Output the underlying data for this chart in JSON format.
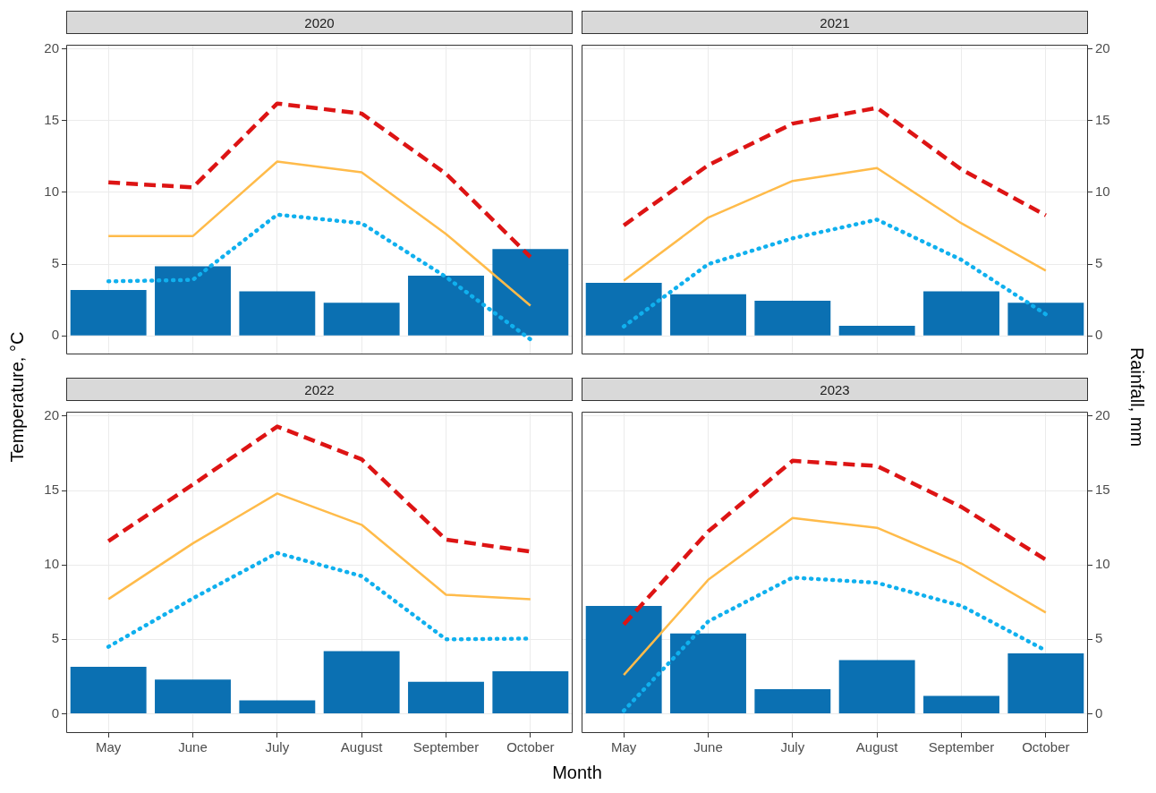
{
  "chart_data": [
    {
      "type": "bar",
      "title": "2020",
      "ylabel": "Temperature, °C",
      "categories": [
        null,
        null,
        null,
        null,
        null,
        null
      ],
      "ylim": [
        -1.3,
        20.3
      ],
      "yticks": [
        0,
        5,
        10,
        15,
        20
      ],
      "grid": true,
      "legend": false,
      "tick_labels": "y",
      "marker": "none",
      "series": [
        {
          "color": "#0b70b2",
          "values": [
            3.2,
            4.85,
            3.1,
            2.3,
            4.2,
            6.05
          ]
        },
        {
          "type": "line",
          "line_style": "dashed",
          "color": "#dd1414",
          "values": [
            10.7,
            10.35,
            16.2,
            15.5,
            11.3,
            5.5
          ]
        },
        {
          "type": "line",
          "line_style": "solid",
          "color": "#ffbb4a",
          "values": [
            6.95,
            6.95,
            12.15,
            11.4,
            7.1,
            2.1
          ]
        },
        {
          "type": "line",
          "line_style": "dotted",
          "color": "#10b0ee",
          "values": [
            3.8,
            3.9,
            8.45,
            7.85,
            4.1,
            -0.25
          ]
        }
      ]
    },
    {
      "type": "bar",
      "title": "2021",
      "y2label": "Rainfall, mm",
      "categories": [
        null,
        null,
        null,
        null,
        null,
        null
      ],
      "y2lim": [
        -1.3,
        20.3
      ],
      "y2ticks": [
        0,
        5,
        10,
        15,
        20
      ],
      "grid": true,
      "legend": false,
      "tick_labels": "y",
      "marker": "none",
      "series": [
        {
          "axis": "y2",
          "color": "#0b70b2",
          "values": [
            3.7,
            2.9,
            2.45,
            0.7,
            3.1,
            2.3
          ]
        },
        {
          "type": "line",
          "axis": "y2",
          "line_style": "dashed",
          "color": "#dd1414",
          "values": [
            7.7,
            11.9,
            14.8,
            15.9,
            11.6,
            8.4
          ]
        },
        {
          "type": "line",
          "axis": "y2",
          "line_style": "solid",
          "color": "#ffbb4a",
          "values": [
            3.85,
            8.25,
            10.8,
            11.7,
            7.85,
            4.55
          ]
        },
        {
          "type": "line",
          "axis": "y2",
          "line_style": "dotted",
          "color": "#10b0ee",
          "values": [
            0.65,
            5.0,
            6.8,
            8.1,
            5.3,
            1.5
          ]
        }
      ]
    },
    {
      "type": "bar",
      "title": "2022",
      "xlabel": "Month",
      "categories": [
        "May",
        "June",
        "July",
        "August",
        "September",
        "October"
      ],
      "ylim": [
        -1.3,
        20.3
      ],
      "yticks": [
        0,
        5,
        10,
        15,
        20
      ],
      "grid": true,
      "legend": false,
      "marker": "none",
      "series": [
        {
          "color": "#0b70b2",
          "values": [
            3.15,
            2.3,
            0.9,
            4.2,
            2.15,
            2.85
          ]
        },
        {
          "type": "line",
          "line_style": "dashed",
          "color": "#dd1414",
          "values": [
            11.6,
            15.4,
            19.3,
            17.1,
            11.7,
            10.9
          ]
        },
        {
          "type": "line",
          "line_style": "solid",
          "color": "#ffbb4a",
          "values": [
            7.7,
            11.45,
            14.8,
            12.7,
            8.0,
            7.7
          ]
        },
        {
          "type": "line",
          "line_style": "dotted",
          "color": "#10b0ee",
          "values": [
            4.5,
            7.75,
            10.8,
            9.25,
            5.0,
            5.05
          ]
        }
      ]
    },
    {
      "type": "bar",
      "title": "2023",
      "categories": [
        "May",
        "June",
        "July",
        "August",
        "September",
        "October"
      ],
      "y2lim": [
        -1.3,
        20.3
      ],
      "y2ticks": [
        0,
        5,
        10,
        15,
        20
      ],
      "grid": true,
      "legend": false,
      "marker": "none",
      "series": [
        {
          "axis": "y2",
          "color": "#0b70b2",
          "values": [
            7.25,
            5.4,
            1.65,
            3.6,
            1.2,
            4.05
          ]
        },
        {
          "type": "line",
          "axis": "y2",
          "line_style": "dashed",
          "color": "#dd1414",
          "values": [
            6.0,
            12.25,
            17.0,
            16.65,
            13.9,
            10.35
          ]
        },
        {
          "type": "line",
          "axis": "y2",
          "line_style": "solid",
          "color": "#ffbb4a",
          "values": [
            2.6,
            9.0,
            13.15,
            12.5,
            10.1,
            6.8
          ]
        },
        {
          "type": "line",
          "axis": "y2",
          "line_style": "dotted",
          "color": "#10b0ee",
          "values": [
            0.2,
            6.2,
            9.15,
            8.8,
            7.25,
            4.25
          ]
        }
      ]
    }
  ]
}
